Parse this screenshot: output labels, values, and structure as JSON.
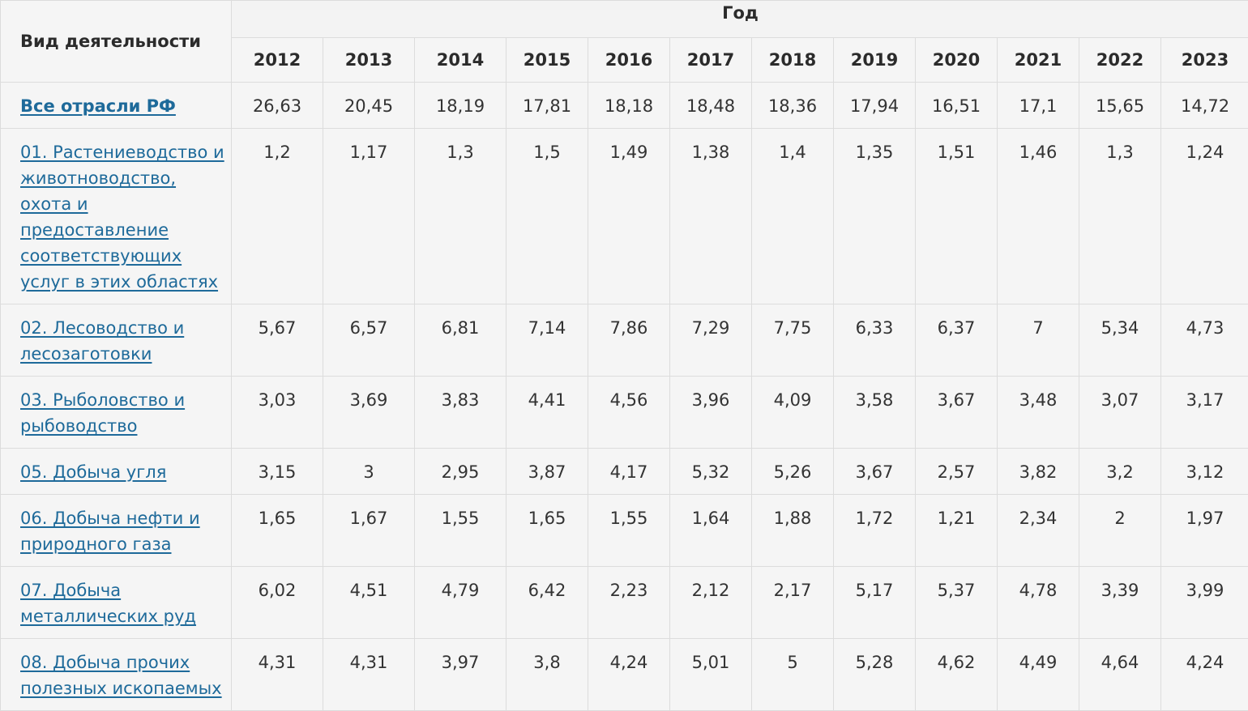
{
  "header": {
    "activity_label": "Вид деятельности",
    "year_label": "Год",
    "years": [
      "2012",
      "2013",
      "2014",
      "2015",
      "2016",
      "2017",
      "2018",
      "2019",
      "2020",
      "2021",
      "2022",
      "2023"
    ]
  },
  "rows": [
    {
      "name": "Все отрасли РФ",
      "values": [
        "26,63",
        "20,45",
        "18,19",
        "17,81",
        "18,18",
        "18,48",
        "18,36",
        "17,94",
        "16,51",
        "17,1",
        "15,65",
        "14,72"
      ]
    },
    {
      "name": "01. Растениеводство и животноводство, охота и предоставление соответствующих услуг в этих областях",
      "values": [
        "1,2",
        "1,17",
        "1,3",
        "1,5",
        "1,49",
        "1,38",
        "1,4",
        "1,35",
        "1,51",
        "1,46",
        "1,3",
        "1,24"
      ]
    },
    {
      "name": "02. Лесоводство и лесозаготовки",
      "values": [
        "5,67",
        "6,57",
        "6,81",
        "7,14",
        "7,86",
        "7,29",
        "7,75",
        "6,33",
        "6,37",
        "7",
        "5,34",
        "4,73"
      ]
    },
    {
      "name": "03. Рыболовство и рыбоводство",
      "values": [
        "3,03",
        "3,69",
        "3,83",
        "4,41",
        "4,56",
        "3,96",
        "4,09",
        "3,58",
        "3,67",
        "3,48",
        "3,07",
        "3,17"
      ]
    },
    {
      "name": "05. Добыча угля",
      "values": [
        "3,15",
        "3",
        "2,95",
        "3,87",
        "4,17",
        "5,32",
        "5,26",
        "3,67",
        "2,57",
        "3,82",
        "3,2",
        "3,12"
      ]
    },
    {
      "name": "06. Добыча нефти и природного газа",
      "values": [
        "1,65",
        "1,67",
        "1,55",
        "1,65",
        "1,55",
        "1,64",
        "1,88",
        "1,72",
        "1,21",
        "2,34",
        "2",
        "1,97"
      ]
    },
    {
      "name": "07. Добыча металлических руд",
      "values": [
        "6,02",
        "4,51",
        "4,79",
        "6,42",
        "2,23",
        "2,12",
        "2,17",
        "5,17",
        "5,37",
        "4,78",
        "3,39",
        "3,99"
      ]
    },
    {
      "name": "08. Добыча прочих полезных ископаемых",
      "values": [
        "4,31",
        "4,31",
        "3,97",
        "3,8",
        "4,24",
        "5,01",
        "5",
        "5,28",
        "4,62",
        "4,49",
        "4,64",
        "4,24"
      ]
    }
  ]
}
